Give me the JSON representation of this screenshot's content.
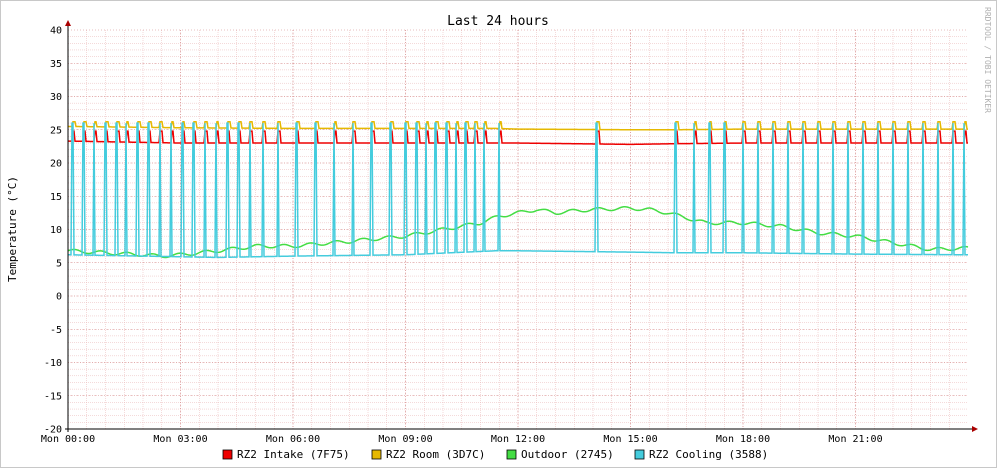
{
  "chart_data": {
    "type": "line",
    "title": "Last 24 hours",
    "ylabel": "Temperature (°C)",
    "xlabel": "",
    "watermark": "RRDTOOL / TOBI OETIKER",
    "ylim": [
      -20,
      40
    ],
    "yticks": [
      40,
      35,
      30,
      25,
      20,
      15,
      10,
      5,
      0,
      -5,
      -10,
      -15,
      -20
    ],
    "xlim": [
      0,
      24
    ],
    "xticks": [
      {
        "hour": 0,
        "label": "Mon 00:00"
      },
      {
        "hour": 3,
        "label": "Mon 03:00"
      },
      {
        "hour": 6,
        "label": "Mon 06:00"
      },
      {
        "hour": 9,
        "label": "Mon 09:00"
      },
      {
        "hour": 12,
        "label": "Mon 12:00"
      },
      {
        "hour": 15,
        "label": "Mon 15:00"
      },
      {
        "hour": 18,
        "label": "Mon 18:00"
      },
      {
        "hour": 21,
        "label": "Mon 21:00"
      }
    ],
    "grid": true,
    "legend_position": "bottom",
    "colors": {
      "intake": "#ee0000",
      "room": "#e6b800",
      "outdoor": "#44dd44",
      "cooling": "#44ccdd",
      "grid_minor": "#e8b4b4",
      "axis": "#000000",
      "arrow": "#aa0000"
    },
    "series": [
      {
        "key": "intake",
        "name": "RZ2 Intake (7F75)",
        "baseline_points": [
          [
            0,
            23.3
          ],
          [
            3,
            23.0
          ],
          [
            6,
            23.0
          ],
          [
            9,
            23.0
          ],
          [
            11.4,
            23.0
          ],
          [
            12,
            23.0
          ],
          [
            15,
            22.8
          ],
          [
            16.2,
            22.9
          ],
          [
            18,
            23.0
          ],
          [
            21,
            23.0
          ],
          [
            24,
            23.0
          ]
        ],
        "spike_value": 24.8
      },
      {
        "key": "room",
        "name": "RZ2 Room (3D7C)",
        "baseline_points": [
          [
            0,
            25.5
          ],
          [
            3,
            25.3
          ],
          [
            6,
            25.2
          ],
          [
            9,
            25.2
          ],
          [
            11.4,
            25.2
          ],
          [
            12,
            25.1
          ],
          [
            15,
            25.0
          ],
          [
            16.2,
            25.0
          ],
          [
            18,
            25.1
          ],
          [
            21,
            25.1
          ],
          [
            24,
            25.1
          ]
        ],
        "spike_value": 26.2
      },
      {
        "key": "outdoor",
        "name": "Outdoor (2745)",
        "points": [
          [
            0,
            6.8
          ],
          [
            1,
            6.5
          ],
          [
            2,
            6.2
          ],
          [
            2.5,
            6.0
          ],
          [
            3,
            6.2
          ],
          [
            4,
            6.8
          ],
          [
            5,
            7.5
          ],
          [
            6,
            7.5
          ],
          [
            7,
            8.0
          ],
          [
            7.5,
            8.2
          ],
          [
            8,
            8.5
          ],
          [
            9,
            9.0
          ],
          [
            9.5,
            9.5
          ],
          [
            10,
            10.0
          ],
          [
            10.5,
            10.5
          ],
          [
            11,
            11.0
          ],
          [
            11.5,
            12.0
          ],
          [
            12,
            12.5
          ],
          [
            12.5,
            13.0
          ],
          [
            13,
            12.5
          ],
          [
            13.5,
            12.8
          ],
          [
            14,
            13.0
          ],
          [
            15,
            13.2
          ],
          [
            15.5,
            13.0
          ],
          [
            16,
            12.5
          ],
          [
            17,
            11.0
          ],
          [
            18,
            11.0
          ],
          [
            19,
            10.5
          ],
          [
            20,
            9.5
          ],
          [
            21,
            9.0
          ],
          [
            22,
            8.0
          ],
          [
            23,
            7.0
          ],
          [
            24,
            7.2
          ]
        ]
      },
      {
        "key": "cooling",
        "name": "RZ2 Cooling (3588)",
        "baseline_points": [
          [
            0,
            6.2
          ],
          [
            2,
            6.0
          ],
          [
            4,
            5.8
          ],
          [
            6,
            6.0
          ],
          [
            9,
            6.2
          ],
          [
            11.4,
            6.8
          ],
          [
            12,
            6.8
          ],
          [
            15,
            6.6
          ],
          [
            16.2,
            6.5
          ],
          [
            18,
            6.5
          ],
          [
            21,
            6.3
          ],
          [
            24,
            6.2
          ]
        ],
        "spike_value": 26.0,
        "spike_hours": [
          0.12,
          0.42,
          0.7,
          1.0,
          1.3,
          1.55,
          1.85,
          2.15,
          2.45,
          2.75,
          3.05,
          3.35,
          3.65,
          3.95,
          4.25,
          4.55,
          4.85,
          5.2,
          5.6,
          6.1,
          6.6,
          7.1,
          7.6,
          8.1,
          8.6,
          9.0,
          9.3,
          9.55,
          9.8,
          10.1,
          10.35,
          10.6,
          10.85,
          11.1,
          11.5,
          14.1,
          16.2,
          16.7,
          17.1,
          17.5,
          18.0,
          18.4,
          18.8,
          19.2,
          19.6,
          20.0,
          20.4,
          20.8,
          21.2,
          21.6,
          22.0,
          22.4,
          22.8,
          23.2,
          23.6,
          23.9
        ]
      }
    ]
  }
}
